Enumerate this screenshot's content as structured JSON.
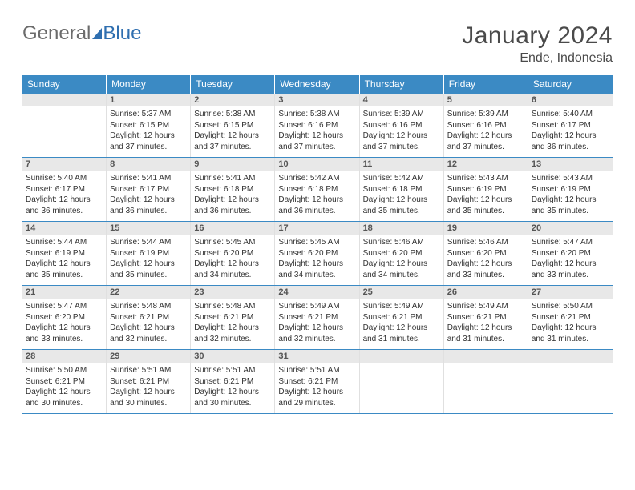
{
  "logo": {
    "general": "General",
    "blue": "Blue"
  },
  "header": {
    "title": "January 2024",
    "location": "Ende, Indonesia"
  },
  "weekdays": [
    "Sunday",
    "Monday",
    "Tuesday",
    "Wednesday",
    "Thursday",
    "Friday",
    "Saturday"
  ],
  "styling": {
    "page_bg": "#ffffff",
    "header_band_bg": "#3b8ac4",
    "header_band_text": "#ffffff",
    "daynum_bg": "#e8e8e8",
    "daynum_text": "#555555",
    "week_divider": "#3b8ac4",
    "cell_divider": "#e0e0e0",
    "body_text": "#323232",
    "title_text": "#4a4a4a",
    "logo_gray": "#6b6b6b",
    "logo_blue": "#2f6fb0",
    "title_fontsize_pt": 22,
    "loc_fontsize_pt": 12,
    "weekday_fontsize_pt": 9,
    "daytext_fontsize_pt": 7.5,
    "columns": 7,
    "rows": 5
  },
  "weeks": [
    [
      null,
      {
        "n": "1",
        "sr": "Sunrise: 5:37 AM",
        "ss": "Sunset: 6:15 PM",
        "d1": "Daylight: 12 hours",
        "d2": "and 37 minutes."
      },
      {
        "n": "2",
        "sr": "Sunrise: 5:38 AM",
        "ss": "Sunset: 6:15 PM",
        "d1": "Daylight: 12 hours",
        "d2": "and 37 minutes."
      },
      {
        "n": "3",
        "sr": "Sunrise: 5:38 AM",
        "ss": "Sunset: 6:16 PM",
        "d1": "Daylight: 12 hours",
        "d2": "and 37 minutes."
      },
      {
        "n": "4",
        "sr": "Sunrise: 5:39 AM",
        "ss": "Sunset: 6:16 PM",
        "d1": "Daylight: 12 hours",
        "d2": "and 37 minutes."
      },
      {
        "n": "5",
        "sr": "Sunrise: 5:39 AM",
        "ss": "Sunset: 6:16 PM",
        "d1": "Daylight: 12 hours",
        "d2": "and 37 minutes."
      },
      {
        "n": "6",
        "sr": "Sunrise: 5:40 AM",
        "ss": "Sunset: 6:17 PM",
        "d1": "Daylight: 12 hours",
        "d2": "and 36 minutes."
      }
    ],
    [
      {
        "n": "7",
        "sr": "Sunrise: 5:40 AM",
        "ss": "Sunset: 6:17 PM",
        "d1": "Daylight: 12 hours",
        "d2": "and 36 minutes."
      },
      {
        "n": "8",
        "sr": "Sunrise: 5:41 AM",
        "ss": "Sunset: 6:17 PM",
        "d1": "Daylight: 12 hours",
        "d2": "and 36 minutes."
      },
      {
        "n": "9",
        "sr": "Sunrise: 5:41 AM",
        "ss": "Sunset: 6:18 PM",
        "d1": "Daylight: 12 hours",
        "d2": "and 36 minutes."
      },
      {
        "n": "10",
        "sr": "Sunrise: 5:42 AM",
        "ss": "Sunset: 6:18 PM",
        "d1": "Daylight: 12 hours",
        "d2": "and 36 minutes."
      },
      {
        "n": "11",
        "sr": "Sunrise: 5:42 AM",
        "ss": "Sunset: 6:18 PM",
        "d1": "Daylight: 12 hours",
        "d2": "and 35 minutes."
      },
      {
        "n": "12",
        "sr": "Sunrise: 5:43 AM",
        "ss": "Sunset: 6:19 PM",
        "d1": "Daylight: 12 hours",
        "d2": "and 35 minutes."
      },
      {
        "n": "13",
        "sr": "Sunrise: 5:43 AM",
        "ss": "Sunset: 6:19 PM",
        "d1": "Daylight: 12 hours",
        "d2": "and 35 minutes."
      }
    ],
    [
      {
        "n": "14",
        "sr": "Sunrise: 5:44 AM",
        "ss": "Sunset: 6:19 PM",
        "d1": "Daylight: 12 hours",
        "d2": "and 35 minutes."
      },
      {
        "n": "15",
        "sr": "Sunrise: 5:44 AM",
        "ss": "Sunset: 6:19 PM",
        "d1": "Daylight: 12 hours",
        "d2": "and 35 minutes."
      },
      {
        "n": "16",
        "sr": "Sunrise: 5:45 AM",
        "ss": "Sunset: 6:20 PM",
        "d1": "Daylight: 12 hours",
        "d2": "and 34 minutes."
      },
      {
        "n": "17",
        "sr": "Sunrise: 5:45 AM",
        "ss": "Sunset: 6:20 PM",
        "d1": "Daylight: 12 hours",
        "d2": "and 34 minutes."
      },
      {
        "n": "18",
        "sr": "Sunrise: 5:46 AM",
        "ss": "Sunset: 6:20 PM",
        "d1": "Daylight: 12 hours",
        "d2": "and 34 minutes."
      },
      {
        "n": "19",
        "sr": "Sunrise: 5:46 AM",
        "ss": "Sunset: 6:20 PM",
        "d1": "Daylight: 12 hours",
        "d2": "and 33 minutes."
      },
      {
        "n": "20",
        "sr": "Sunrise: 5:47 AM",
        "ss": "Sunset: 6:20 PM",
        "d1": "Daylight: 12 hours",
        "d2": "and 33 minutes."
      }
    ],
    [
      {
        "n": "21",
        "sr": "Sunrise: 5:47 AM",
        "ss": "Sunset: 6:20 PM",
        "d1": "Daylight: 12 hours",
        "d2": "and 33 minutes."
      },
      {
        "n": "22",
        "sr": "Sunrise: 5:48 AM",
        "ss": "Sunset: 6:21 PM",
        "d1": "Daylight: 12 hours",
        "d2": "and 32 minutes."
      },
      {
        "n": "23",
        "sr": "Sunrise: 5:48 AM",
        "ss": "Sunset: 6:21 PM",
        "d1": "Daylight: 12 hours",
        "d2": "and 32 minutes."
      },
      {
        "n": "24",
        "sr": "Sunrise: 5:49 AM",
        "ss": "Sunset: 6:21 PM",
        "d1": "Daylight: 12 hours",
        "d2": "and 32 minutes."
      },
      {
        "n": "25",
        "sr": "Sunrise: 5:49 AM",
        "ss": "Sunset: 6:21 PM",
        "d1": "Daylight: 12 hours",
        "d2": "and 31 minutes."
      },
      {
        "n": "26",
        "sr": "Sunrise: 5:49 AM",
        "ss": "Sunset: 6:21 PM",
        "d1": "Daylight: 12 hours",
        "d2": "and 31 minutes."
      },
      {
        "n": "27",
        "sr": "Sunrise: 5:50 AM",
        "ss": "Sunset: 6:21 PM",
        "d1": "Daylight: 12 hours",
        "d2": "and 31 minutes."
      }
    ],
    [
      {
        "n": "28",
        "sr": "Sunrise: 5:50 AM",
        "ss": "Sunset: 6:21 PM",
        "d1": "Daylight: 12 hours",
        "d2": "and 30 minutes."
      },
      {
        "n": "29",
        "sr": "Sunrise: 5:51 AM",
        "ss": "Sunset: 6:21 PM",
        "d1": "Daylight: 12 hours",
        "d2": "and 30 minutes."
      },
      {
        "n": "30",
        "sr": "Sunrise: 5:51 AM",
        "ss": "Sunset: 6:21 PM",
        "d1": "Daylight: 12 hours",
        "d2": "and 30 minutes."
      },
      {
        "n": "31",
        "sr": "Sunrise: 5:51 AM",
        "ss": "Sunset: 6:21 PM",
        "d1": "Daylight: 12 hours",
        "d2": "and 29 minutes."
      },
      null,
      null,
      null
    ]
  ]
}
